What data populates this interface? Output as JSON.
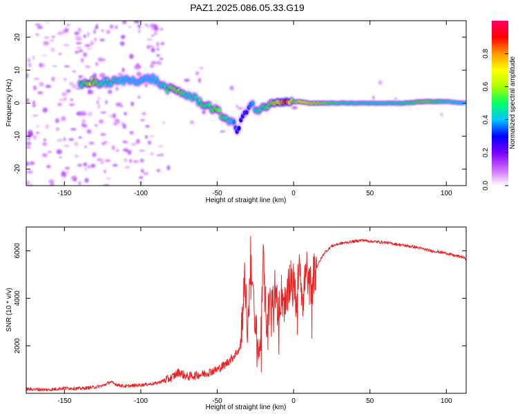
{
  "title": "PAZ1.2025.086.05.33.G19",
  "chart_data": [
    {
      "type": "heatmap",
      "xlabel": "Height of straight line (km)",
      "ylabel": "Frequency (Hz)",
      "xlim": [
        -175,
        113
      ],
      "ylim": [
        -25,
        25
      ],
      "xticks": [
        -150,
        -100,
        -50,
        0,
        50,
        100
      ],
      "yticks": [
        -20,
        -10,
        0,
        10,
        20
      ],
      "colorbar": {
        "label": "Normalized spectral amplitude",
        "range": [
          0.0,
          1.0
        ],
        "ticks": [
          0.0,
          0.2,
          0.4,
          0.6,
          0.8
        ],
        "colormap": [
          "#ffffff",
          "#cc66ff",
          "#7a00ff",
          "#0000ff",
          "#00c8ff",
          "#00ff66",
          "#aaff00",
          "#ffff00",
          "#ff9900",
          "#ff0000",
          "#ff0066"
        ]
      },
      "ridge": [
        {
          "x": -140,
          "y": 5.5,
          "a": 0.45
        },
        {
          "x": -133,
          "y": 6.5,
          "a": 0.6
        },
        {
          "x": -125,
          "y": 6.0,
          "a": 0.45
        },
        {
          "x": -118,
          "y": 6.5,
          "a": 0.45
        },
        {
          "x": -110,
          "y": 7.0,
          "a": 0.4
        },
        {
          "x": -100,
          "y": 7.0,
          "a": 0.4
        },
        {
          "x": -92,
          "y": 7.5,
          "a": 0.4
        },
        {
          "x": -85,
          "y": 5.0,
          "a": 0.45
        },
        {
          "x": -80,
          "y": 4.0,
          "a": 0.55
        },
        {
          "x": -75,
          "y": 3.5,
          "a": 0.55
        },
        {
          "x": -70,
          "y": 2.5,
          "a": 0.45
        },
        {
          "x": -65,
          "y": 1.5,
          "a": 0.45
        },
        {
          "x": -60,
          "y": 0.0,
          "a": 0.5
        },
        {
          "x": -55,
          "y": -1.0,
          "a": 0.5
        },
        {
          "x": -50,
          "y": -2.5,
          "a": 0.55
        },
        {
          "x": -45,
          "y": -4.5,
          "a": 0.5
        },
        {
          "x": -40,
          "y": -5.5,
          "a": 0.4
        },
        {
          "x": -37,
          "y": -8.5,
          "a": 0.3
        },
        {
          "x": -32,
          "y": -3.0,
          "a": 0.3
        },
        {
          "x": -28,
          "y": 0.0,
          "a": 0.35
        },
        {
          "x": -24,
          "y": -2.5,
          "a": 0.45
        },
        {
          "x": -18,
          "y": -1.0,
          "a": 0.5
        },
        {
          "x": -12,
          "y": 0.0,
          "a": 0.6
        },
        {
          "x": -5,
          "y": 0.0,
          "a": 0.9
        },
        {
          "x": 0,
          "y": 0.5,
          "a": 0.5
        },
        {
          "x": 5,
          "y": 0.5,
          "a": 0.7
        },
        {
          "x": 10,
          "y": 0.0,
          "a": 0.6
        },
        {
          "x": 20,
          "y": 0.0,
          "a": 0.55
        },
        {
          "x": 30,
          "y": 0.0,
          "a": 0.45
        },
        {
          "x": 50,
          "y": 0.0,
          "a": 0.45
        },
        {
          "x": 70,
          "y": 0.0,
          "a": 0.45
        },
        {
          "x": 85,
          "y": 0.5,
          "a": 0.55
        },
        {
          "x": 100,
          "y": 0.5,
          "a": 0.45
        },
        {
          "x": 113,
          "y": 0.0,
          "a": 0.4
        }
      ]
    },
    {
      "type": "line",
      "xlabel": "Height of straight line (km)",
      "ylabel": "SNR (10 * v/v)",
      "xlim": [
        -175,
        113
      ],
      "ylim": [
        0,
        7000
      ],
      "xticks": [
        -150,
        -100,
        -50,
        0,
        50,
        100
      ],
      "yticks": [
        2000,
        4000,
        6000
      ],
      "color": "#ee2222",
      "series": [
        {
          "x": [
            -175,
            -160,
            -150,
            -140,
            -130,
            -125,
            -120,
            -115,
            -110,
            -100,
            -90,
            -80,
            -75,
            -70,
            -60,
            -50,
            -45,
            -40,
            -35,
            -32,
            -30,
            -28,
            -26,
            -24,
            -22,
            -20,
            -18,
            -15,
            -12,
            -10,
            -8,
            -5,
            -2,
            0,
            2,
            4,
            6,
            8,
            10,
            12,
            15,
            20,
            25,
            30,
            40,
            45,
            50,
            60,
            70,
            80,
            90,
            100,
            105,
            110,
            113
          ],
          "y": [
            180,
            150,
            220,
            200,
            260,
            320,
            480,
            350,
            300,
            350,
            420,
            650,
            900,
            700,
            800,
            1000,
            1200,
            1500,
            1900,
            4800,
            2500,
            6000,
            3500,
            2200,
            1600,
            5800,
            3000,
            3800,
            4500,
            3200,
            4200,
            3600,
            5000,
            4600,
            3800,
            6000,
            3400,
            5500,
            4400,
            4800,
            5300,
            5900,
            6200,
            6300,
            6400,
            6450,
            6400,
            6350,
            6250,
            6150,
            6000,
            5900,
            5800,
            5750,
            5650
          ]
        }
      ]
    }
  ]
}
